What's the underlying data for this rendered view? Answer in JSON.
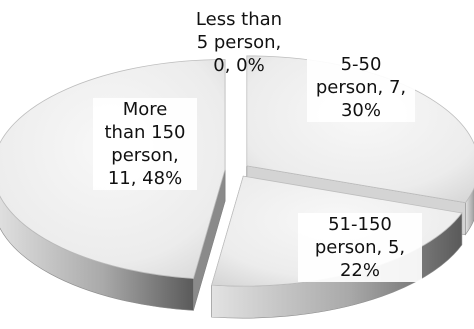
{
  "chart_data": {
    "type": "pie",
    "style": "3d-exploded",
    "title": "",
    "slices": [
      {
        "category": "Less than 5 person",
        "value": 0,
        "percent": "0%",
        "label": "Less than\n5 person,\n0, 0%"
      },
      {
        "category": "5-50 person",
        "value": 7,
        "percent": "30%",
        "label": "5-50\nperson, 7,\n30%"
      },
      {
        "category": "51-150 person",
        "value": 5,
        "percent": "22%",
        "label": "51-150\nperson, 5,\n22%"
      },
      {
        "category": "More than 150 person",
        "value": 11,
        "percent": "48%",
        "label": "More\nthan 150\nperson,\n11, 48%"
      }
    ],
    "colors": {
      "top_light": "#f6f6f6",
      "top_dark": "#dcdcdc",
      "side_light": "#d0d0d0",
      "side_dark": "#6e6e6e",
      "edge": "#9a9a9a"
    }
  }
}
